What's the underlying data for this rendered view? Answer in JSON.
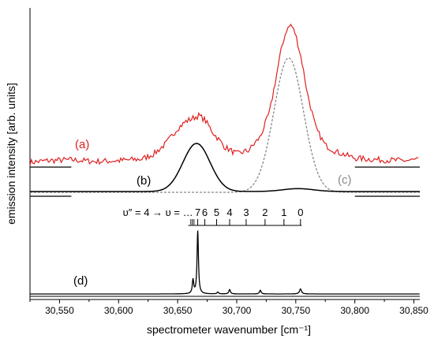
{
  "chart_data": {
    "type": "line",
    "xlabel": "spectrometer wavenumber [cm⁻¹]",
    "ylabel": "emission intensity [arb. units]",
    "xlim": [
      30525,
      30855
    ],
    "x_ticks": [
      30550,
      30600,
      30650,
      30700,
      30750,
      30800,
      30850
    ],
    "x_tick_labels": [
      "30,550",
      "30,600",
      "30,650",
      "30,700",
      "30,750",
      "30,800",
      "30,850"
    ],
    "grid": false,
    "colors": {
      "a": "#e02020",
      "b": "#000000",
      "c": "#888888",
      "d": "#000000"
    },
    "labels": {
      "a": "(a)",
      "b": "(b)",
      "c": "(c)",
      "d": "(d)"
    },
    "series": [
      {
        "key": "a",
        "style": "solid-noisy",
        "baseline": 0.0,
        "points": [
          [
            30525,
            0.0
          ],
          [
            30540,
            0.02
          ],
          [
            30560,
            0.03
          ],
          [
            30580,
            0.01
          ],
          [
            30600,
            0.02
          ],
          [
            30620,
            0.04
          ],
          [
            30630,
            0.1
          ],
          [
            30640,
            0.22
          ],
          [
            30650,
            0.4
          ],
          [
            30657,
            0.48
          ],
          [
            30663,
            0.52
          ],
          [
            30668,
            0.55
          ],
          [
            30673,
            0.5
          ],
          [
            30680,
            0.35
          ],
          [
            30690,
            0.18
          ],
          [
            30700,
            0.1
          ],
          [
            30710,
            0.14
          ],
          [
            30720,
            0.3
          ],
          [
            30728,
            0.6
          ],
          [
            30734,
            1.05
          ],
          [
            30738,
            1.35
          ],
          [
            30742,
            1.55
          ],
          [
            30746,
            1.62
          ],
          [
            30750,
            1.5
          ],
          [
            30755,
            1.2
          ],
          [
            30760,
            0.8
          ],
          [
            30767,
            0.4
          ],
          [
            30775,
            0.2
          ],
          [
            30785,
            0.12
          ],
          [
            30800,
            0.05
          ],
          [
            30820,
            0.03
          ],
          [
            30840,
            0.02
          ],
          [
            30855,
            0.03
          ]
        ]
      },
      {
        "key": "b",
        "style": "solid",
        "gaussians": [
          {
            "center": 30666,
            "width": 11.5,
            "height": 1.0
          },
          {
            "center": 30752,
            "width": 13,
            "height": 0.06
          }
        ]
      },
      {
        "key": "c",
        "style": "dotted",
        "gaussians": [
          {
            "center": 30744,
            "width": 12.5,
            "height": 2.75
          }
        ]
      },
      {
        "key": "d",
        "style": "solid",
        "peaks": [
          {
            "center": 30667,
            "width": 0.7,
            "height": 1.0
          },
          {
            "center": 30663,
            "width": 0.7,
            "height": 0.22
          },
          {
            "center": 30684,
            "width": 0.8,
            "height": 0.03
          },
          {
            "center": 30694,
            "width": 0.8,
            "height": 0.07
          },
          {
            "center": 30720,
            "width": 0.8,
            "height": 0.06
          },
          {
            "center": 30754,
            "width": 1.0,
            "height": 0.08
          }
        ]
      }
    ],
    "vibrational_ladder": {
      "prefix": "υ″ = 4 → υ = …",
      "levels": [
        {
          "label": "7",
          "x": 30667
        },
        {
          "label": "6",
          "x": 30673
        },
        {
          "label": "5",
          "x": 30683
        },
        {
          "label": "4",
          "x": 30694
        },
        {
          "label": "3",
          "x": 30708
        },
        {
          "label": "2",
          "x": 30724
        },
        {
          "label": "1",
          "x": 30740
        },
        {
          "label": "0",
          "x": 30754
        }
      ],
      "crowded_ticks": [
        30661,
        30662,
        30663,
        30664
      ]
    }
  }
}
